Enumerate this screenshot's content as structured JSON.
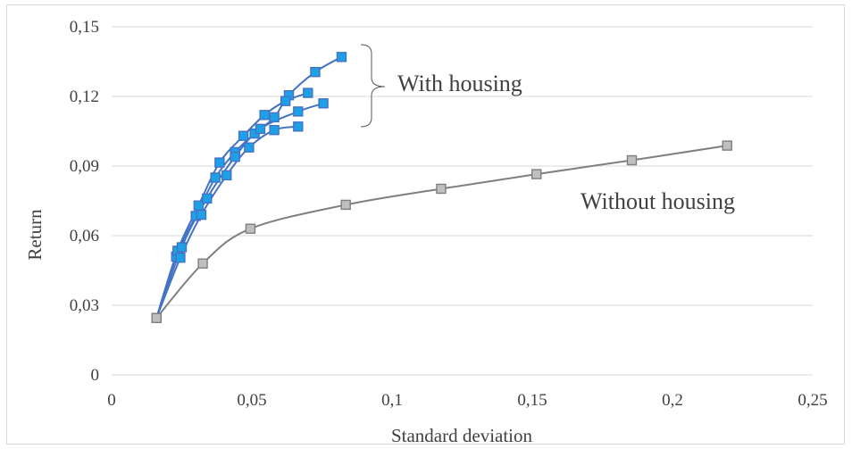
{
  "chart_data": {
    "type": "scatter",
    "title": "",
    "xlabel": "Standard  deviation",
    "ylabel": "Return",
    "xlim": [
      0,
      0.25
    ],
    "ylim": [
      0,
      0.15
    ],
    "x_ticks": [
      "0",
      "0,05",
      "0,1",
      "0,15",
      "0,2",
      "0,25"
    ],
    "y_ticks": [
      "0",
      "0,03",
      "0,06",
      "0,09",
      "0,12",
      "0,15"
    ],
    "grid": "horizontal",
    "legend": "none",
    "annotations": {
      "with_housing": "With housing",
      "without_housing": "Without housing"
    },
    "series": [
      {
        "group": "with_housing",
        "color": "#4472c4",
        "marker_color": "#1ea0e6",
        "points": [
          [
            0.016,
            0.0245
          ],
          [
            0.023,
            0.051
          ],
          [
            0.03,
            0.0685
          ],
          [
            0.037,
            0.085
          ],
          [
            0.044,
            0.096
          ],
          [
            0.051,
            0.104
          ],
          [
            0.058,
            0.111
          ],
          [
            0.0632,
            0.1205
          ],
          [
            0.0726,
            0.1305
          ],
          [
            0.082,
            0.137
          ]
        ]
      },
      {
        "group": "with_housing",
        "color": "#4472c4",
        "marker_color": "#1ea0e6",
        "points": [
          [
            0.016,
            0.0245
          ],
          [
            0.0235,
            0.0535
          ],
          [
            0.031,
            0.073
          ],
          [
            0.0385,
            0.0915
          ],
          [
            0.047,
            0.103
          ],
          [
            0.0545,
            0.112
          ],
          [
            0.062,
            0.118
          ],
          [
            0.07,
            0.1215
          ]
        ]
      },
      {
        "group": "with_housing",
        "color": "#4472c4",
        "marker_color": "#1ea0e6",
        "points": [
          [
            0.016,
            0.0245
          ],
          [
            0.0245,
            0.0505
          ],
          [
            0.032,
            0.069
          ],
          [
            0.041,
            0.086
          ],
          [
            0.049,
            0.098
          ],
          [
            0.058,
            0.1055
          ],
          [
            0.0665,
            0.107
          ]
        ]
      },
      {
        "group": "with_housing",
        "color": "#4472c4",
        "marker_color": "#1ea0e6",
        "points": [
          [
            0.016,
            0.0245
          ],
          [
            0.025,
            0.055
          ],
          [
            0.034,
            0.076
          ],
          [
            0.044,
            0.094
          ],
          [
            0.053,
            0.106
          ],
          [
            0.0665,
            0.1135
          ],
          [
            0.0755,
            0.117
          ]
        ]
      },
      {
        "group": "without_housing",
        "color": "#7f7f7f",
        "marker_color": "#bfbfbf",
        "points": [
          [
            0.016,
            0.0245
          ],
          [
            0.0325,
            0.048
          ],
          [
            0.0495,
            0.063
          ],
          [
            0.0835,
            0.0733
          ],
          [
            0.1175,
            0.0802
          ],
          [
            0.1515,
            0.0865
          ],
          [
            0.1855,
            0.0925
          ],
          [
            0.2195,
            0.0988
          ]
        ]
      }
    ]
  }
}
